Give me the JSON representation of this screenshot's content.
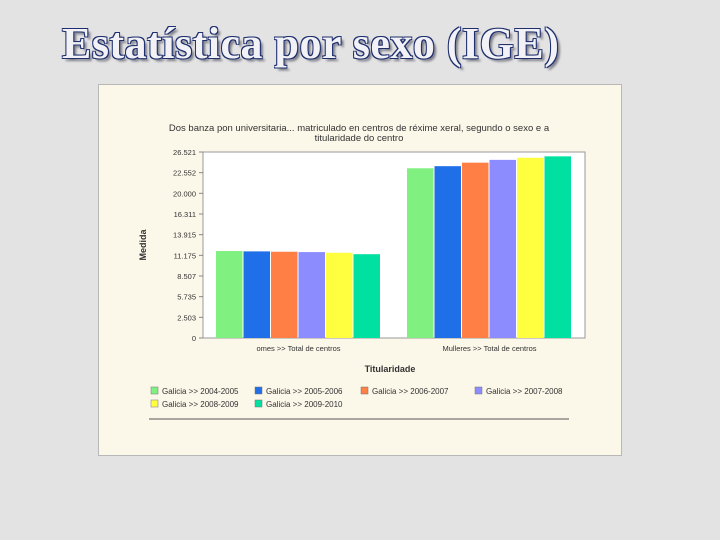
{
  "slide": {
    "title": "Estatística por sexo (IGE)"
  },
  "colors": {
    "background": "#e3e3e3",
    "chart_background": "#fbf7e9",
    "plot_background": "#ffffff",
    "title_fill": "#f2f2f6",
    "title_outline": "#1f2f6e"
  },
  "chart_data": {
    "type": "bar",
    "title": "Dos banza pon universitaria... matriculado en centros de réxime xeral, segundo o sexo e a titularidade do centro",
    "xlabel": "Titularidade",
    "ylabel": "Medida",
    "ylim": [
      0,
      26521
    ],
    "yticks": [
      "0",
      "2.503",
      "5.735",
      "8.507",
      "11.175",
      "13.915",
      "16.311",
      "20.000",
      "22.552",
      "26.521"
    ],
    "categories": [
      "omes >> Total de centros",
      "Mulleres >> Total de centros"
    ],
    "series": [
      {
        "name": "Galicia >> 2004-2005",
        "color": "#80f080",
        "values": [
          12400,
          24200
        ]
      },
      {
        "name": "Galicia >> 2005-2006",
        "color": "#1e6fe8",
        "values": [
          12350,
          24500
        ]
      },
      {
        "name": "Galicia >> 2006-2007",
        "color": "#ff7f45",
        "values": [
          12300,
          25000
        ]
      },
      {
        "name": "Galicia >> 2007-2008",
        "color": "#8c8cff",
        "values": [
          12250,
          25400
        ]
      },
      {
        "name": "Galicia >> 2008-2009",
        "color": "#ffff40",
        "values": [
          12150,
          25700
        ]
      },
      {
        "name": "Galicia >> 2009-2010",
        "color": "#00e0a0",
        "values": [
          11950,
          25900
        ]
      }
    ],
    "grid": false,
    "legend_position": "bottom"
  }
}
